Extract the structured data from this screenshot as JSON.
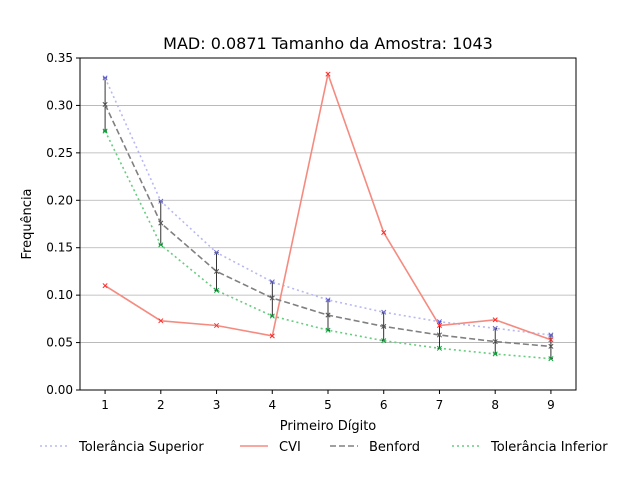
{
  "chart_data": {
    "type": "line",
    "title": "MAD: 0.0871 Tamanho da Amostra: 1043",
    "xlabel": "Primeiro Dígito",
    "ylabel": "Frequência",
    "x": [
      1,
      2,
      3,
      4,
      5,
      6,
      7,
      8,
      9
    ],
    "xlim": [
      0.55,
      9.45
    ],
    "ylim": [
      0.0,
      0.35
    ],
    "xticks": [
      "1",
      "2",
      "3",
      "4",
      "5",
      "6",
      "7",
      "8",
      "9"
    ],
    "yticks": [
      "0.00",
      "0.05",
      "0.10",
      "0.15",
      "0.20",
      "0.25",
      "0.30",
      "0.35"
    ],
    "ytick_values": [
      0.0,
      0.05,
      0.1,
      0.15,
      0.2,
      0.25,
      0.3,
      0.35
    ],
    "grid": "horizontal",
    "legend_position": "bottom",
    "series": [
      {
        "name": "Tolerância Superior",
        "style": "dotted",
        "color": "#b8b8f2",
        "marker_color": "#6666dd",
        "values": [
          0.329,
          0.199,
          0.145,
          0.114,
          0.095,
          0.082,
          0.072,
          0.065,
          0.058
        ]
      },
      {
        "name": "CVI",
        "style": "solid",
        "color": "#f58b80",
        "marker_color": "#ff2a2a",
        "values": [
          0.11,
          0.073,
          0.068,
          0.057,
          0.333,
          0.166,
          0.068,
          0.074,
          0.053
        ]
      },
      {
        "name": "Benford",
        "style": "dashed",
        "color": "#808080",
        "marker_color": "#555555",
        "values": [
          0.301,
          0.176,
          0.125,
          0.097,
          0.079,
          0.067,
          0.058,
          0.051,
          0.046
        ]
      },
      {
        "name": "Tolerância Inferior",
        "style": "dotted",
        "color": "#66cc7f",
        "marker_color": "#00aa33",
        "values": [
          0.273,
          0.153,
          0.105,
          0.078,
          0.063,
          0.052,
          0.044,
          0.038,
          0.033
        ]
      }
    ]
  }
}
